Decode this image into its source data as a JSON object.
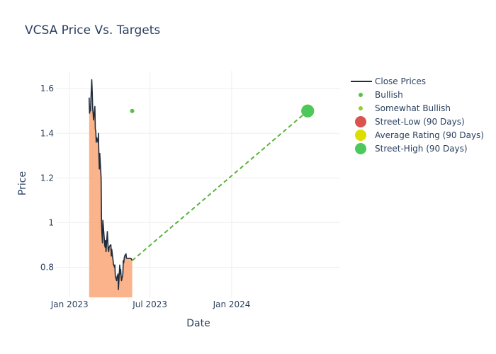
{
  "chart_data": {
    "type": "line",
    "title": "VCSA Price Vs. Targets",
    "xlabel": "Date",
    "ylabel": "Price",
    "x_ticks": [
      {
        "date": "2023-01-01",
        "label": "Jan 2023"
      },
      {
        "date": "2023-07-01",
        "label": "Jul 2023"
      },
      {
        "date": "2024-01-01",
        "label": "Jan 2024"
      }
    ],
    "y_ticks": [
      {
        "value": 0.8,
        "label": "0.8"
      },
      {
        "value": 1.0,
        "label": "1"
      },
      {
        "value": 1.2,
        "label": "1.2"
      },
      {
        "value": 1.4,
        "label": "1.4"
      },
      {
        "value": 1.6,
        "label": "1.6"
      }
    ],
    "xlim": [
      "2022-12-03",
      "2024-09-01"
    ],
    "ylim": [
      0.665,
      1.68
    ],
    "grid": true,
    "legend_position": "top-right",
    "colors": {
      "close_line": "#1f2d3d",
      "close_fill": "#f9a677",
      "bullish": "#5ac147",
      "somewhat_bullish": "#96cc30",
      "street_low": "#d9534f",
      "average_rating": "#dddd00",
      "street_high": "#4cc95a",
      "target_line": "#5ab33e"
    },
    "series": [
      {
        "name": "Close Prices",
        "x": [
          "2023-02-14",
          "2023-02-15",
          "2023-02-16",
          "2023-02-17",
          "2023-02-20",
          "2023-02-21",
          "2023-02-22",
          "2023-02-23",
          "2023-02-24",
          "2023-02-27",
          "2023-02-28",
          "2023-03-01",
          "2023-03-02",
          "2023-03-03",
          "2023-03-06",
          "2023-03-07",
          "2023-03-08",
          "2023-03-09",
          "2023-03-10",
          "2023-03-13",
          "2023-03-14",
          "2023-03-15",
          "2023-03-16",
          "2023-03-17",
          "2023-03-20",
          "2023-03-21",
          "2023-03-22",
          "2023-03-23",
          "2023-03-24",
          "2023-03-27",
          "2023-03-28",
          "2023-03-29",
          "2023-03-30",
          "2023-03-31",
          "2023-04-03",
          "2023-04-04",
          "2023-04-05",
          "2023-04-06",
          "2023-04-10",
          "2023-04-11",
          "2023-04-12",
          "2023-04-13",
          "2023-04-14",
          "2023-04-17",
          "2023-04-18",
          "2023-04-19",
          "2023-04-20",
          "2023-04-21",
          "2023-04-24",
          "2023-04-25",
          "2023-04-26",
          "2023-04-27",
          "2023-04-28",
          "2023-05-01",
          "2023-05-02",
          "2023-05-03",
          "2023-05-04",
          "2023-05-05",
          "2023-05-08",
          "2023-05-09",
          "2023-05-10",
          "2023-05-11",
          "2023-05-12",
          "2023-05-15",
          "2023-05-16",
          "2023-05-17",
          "2023-05-18",
          "2023-05-19",
          "2023-05-22"
        ],
        "y": [
          1.56,
          1.49,
          1.51,
          1.5,
          1.64,
          1.58,
          1.51,
          1.49,
          1.46,
          1.52,
          1.42,
          1.41,
          1.36,
          1.38,
          1.36,
          1.4,
          1.3,
          1.24,
          1.31,
          1.2,
          1.0,
          0.95,
          0.91,
          1.01,
          0.93,
          0.9,
          0.89,
          0.92,
          0.87,
          0.96,
          0.92,
          0.88,
          0.87,
          0.89,
          0.9,
          0.9,
          0.85,
          0.88,
          0.81,
          0.81,
          0.8,
          0.81,
          0.76,
          0.74,
          0.76,
          0.76,
          0.77,
          0.7,
          0.81,
          0.77,
          0.79,
          0.76,
          0.74,
          0.77,
          0.83,
          0.82,
          0.84,
          0.85,
          0.86,
          0.84,
          0.84,
          0.84,
          0.84,
          0.84,
          0.84,
          0.84,
          0.84,
          0.84,
          0.83
        ]
      },
      {
        "name": "Bullish",
        "points": [
          {
            "x": "2023-05-22",
            "y": 1.5
          }
        ]
      },
      {
        "name": "Somewhat Bullish",
        "points": []
      },
      {
        "name": "Street-Low (90 Days)",
        "points": [
          {
            "x": "2024-06-20",
            "y": 1.5
          }
        ]
      },
      {
        "name": "Average Rating (90 Days)",
        "points": [
          {
            "x": "2024-06-20",
            "y": 1.5
          }
        ]
      },
      {
        "name": "Street-High (90 Days)",
        "points": [
          {
            "x": "2024-06-20",
            "y": 1.5
          }
        ]
      }
    ],
    "target_line": {
      "from": {
        "x": "2023-05-22",
        "y": 0.83
      },
      "to": {
        "x": "2024-06-20",
        "y": 1.5
      }
    }
  }
}
